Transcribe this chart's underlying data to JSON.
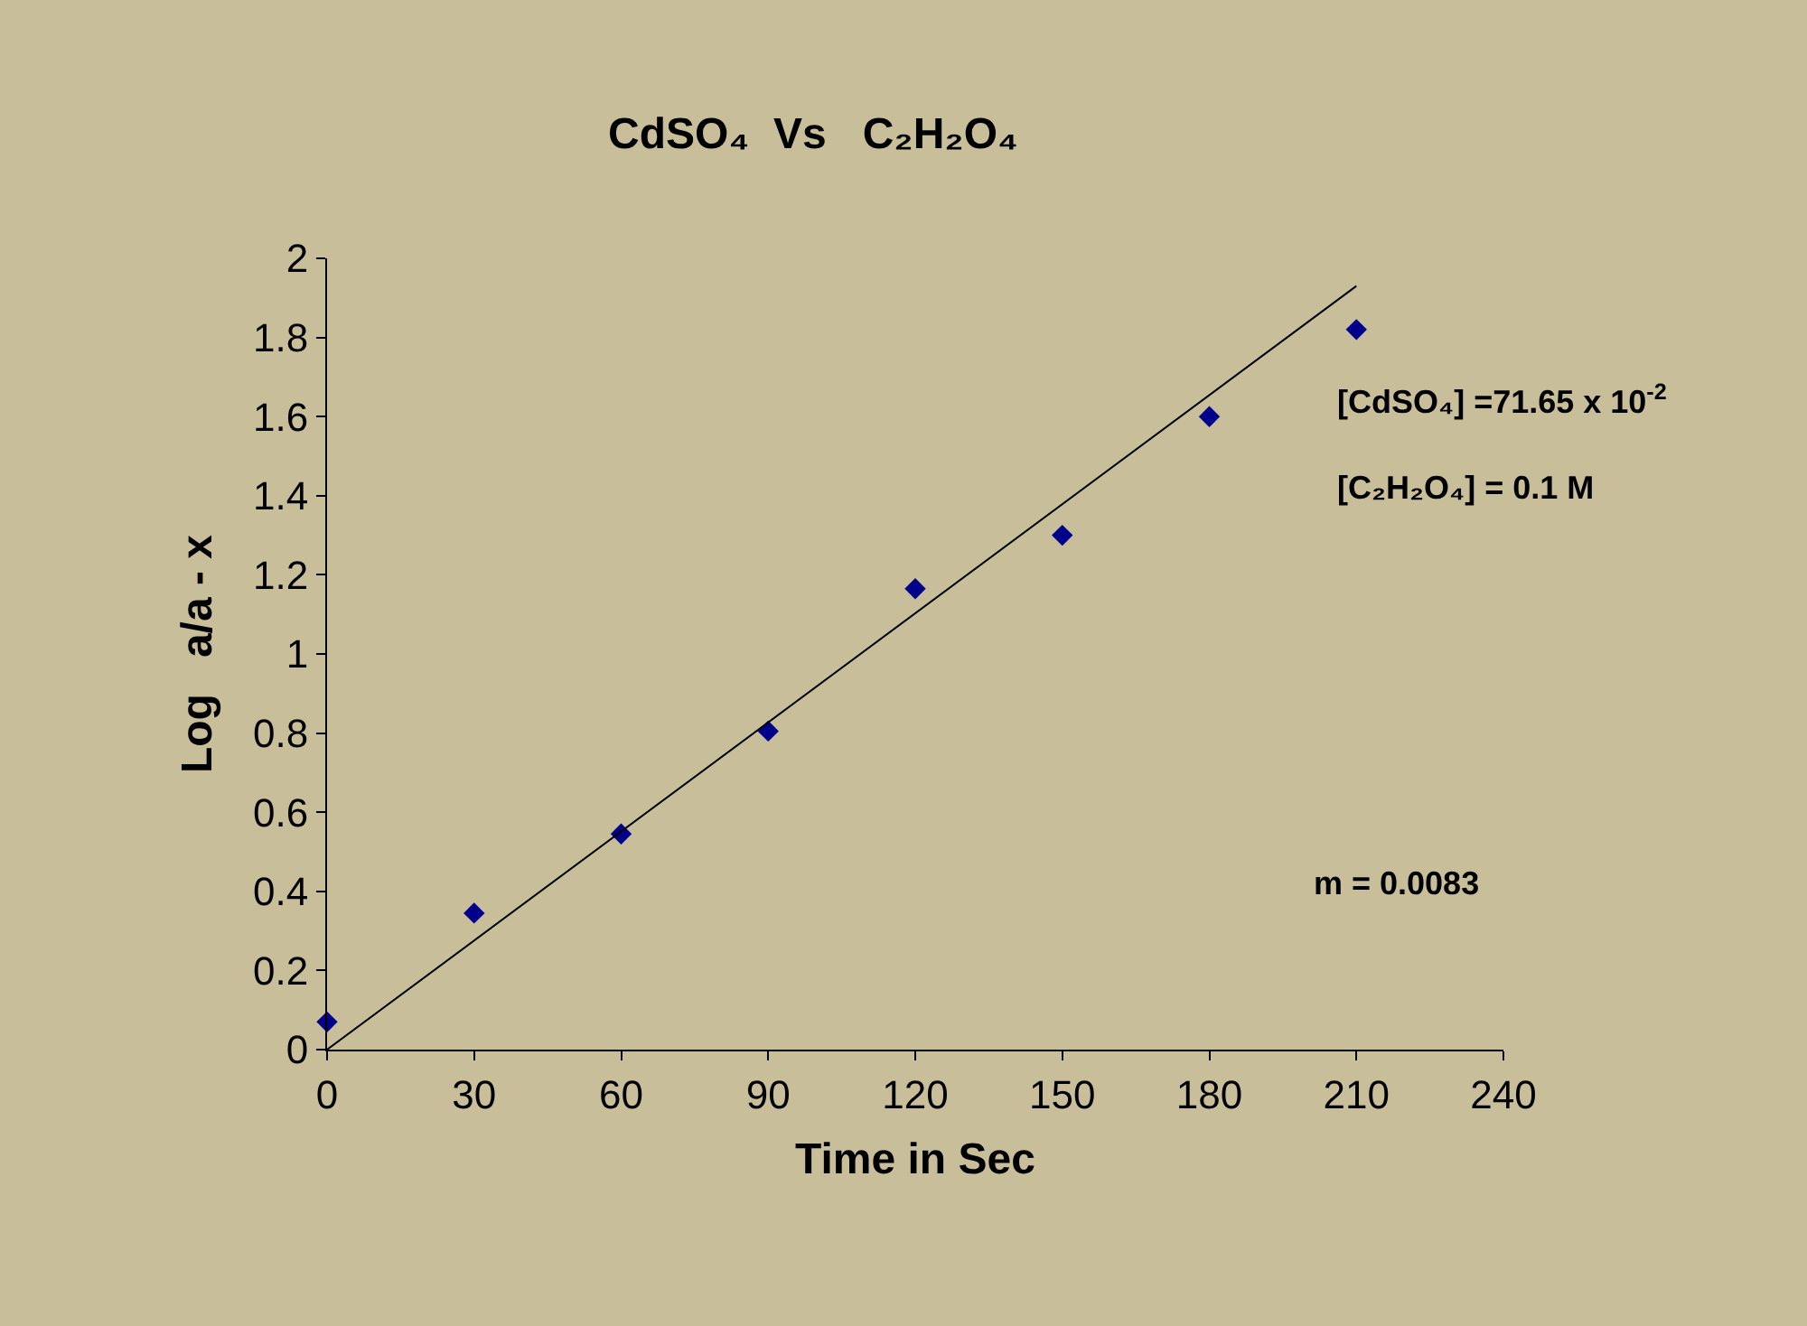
{
  "chart_data": {
    "type": "scatter",
    "title": "CdSO₄  Vs   C₂H₂O₄",
    "xlabel": "Time in Sec",
    "ylabel": "Log   a/a - x",
    "x": [
      0,
      30,
      60,
      90,
      120,
      150,
      180,
      210
    ],
    "series": [
      {
        "color": "#00008b",
        "values": [
          0.07,
          0.345,
          0.545,
          0.805,
          1.165,
          1.3,
          1.6,
          1.82
        ],
        "marker": "diamond"
      },
      {
        "type": "line",
        "color": "#000000",
        "x": [
          0,
          210
        ],
        "values": [
          0,
          1.93
        ],
        "marker": "none",
        "line_style": "solid"
      }
    ],
    "xlim": [
      0,
      240
    ],
    "xticks": [
      0,
      30,
      60,
      90,
      120,
      150,
      180,
      210,
      240
    ],
    "ylim": [
      0,
      2
    ],
    "yticks": [
      0,
      0.2,
      0.4,
      0.6,
      0.8,
      1,
      1.2,
      1.4,
      1.6,
      1.8,
      2
    ],
    "grid": false,
    "annotations": [
      "[CdSO₄] =71.65 x 10$^{-2}$",
      "[C₂H₂O₄] = 0.1 M",
      "m = 0.0083"
    ]
  }
}
